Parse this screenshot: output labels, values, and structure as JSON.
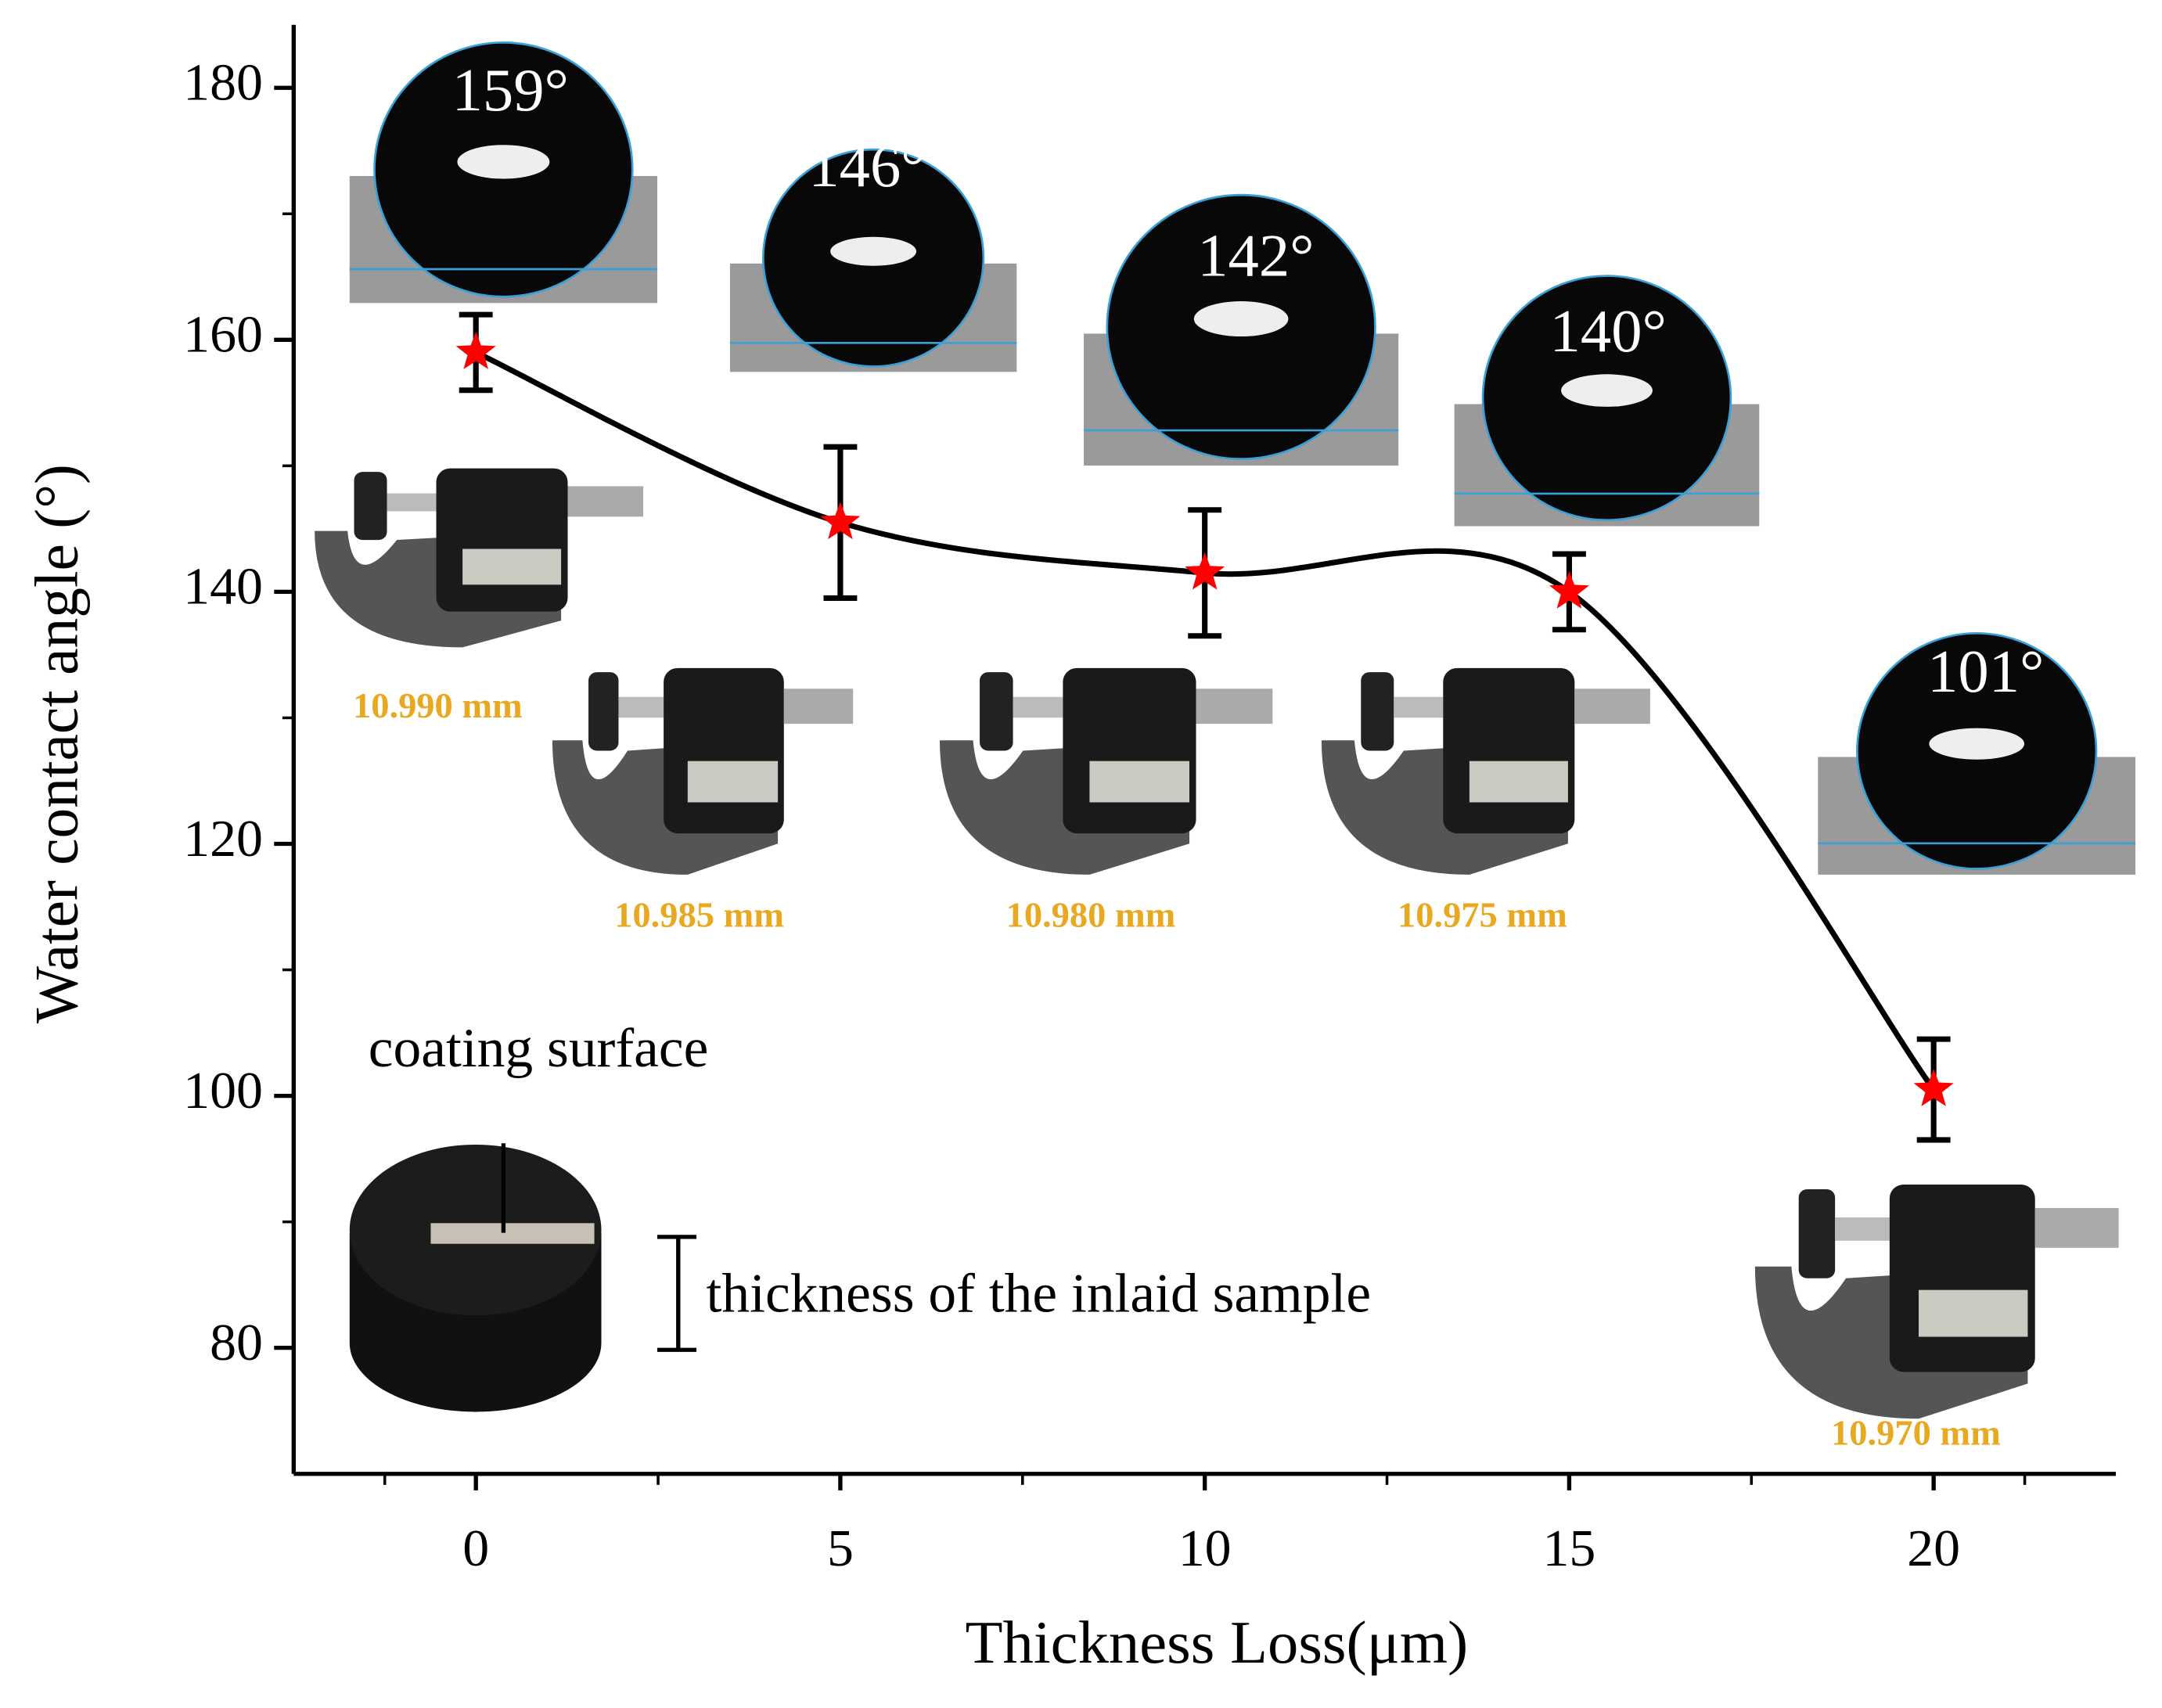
{
  "chart_data": {
    "type": "line",
    "x_label": "Thickness Loss(μm)",
    "y_label": "Water contact angle (°)",
    "x": [
      0,
      5,
      10,
      15,
      20
    ],
    "values": [
      159,
      145.5,
      141.5,
      140,
      100.5
    ],
    "errors": [
      3,
      6,
      5,
      3,
      4
    ],
    "color": "#ff0000",
    "line_color": "#000000",
    "xlim": [
      -2.5,
      22.5
    ],
    "xticks": [
      0,
      5,
      10,
      15,
      20
    ],
    "ylim": [
      70,
      185
    ],
    "yticks": [
      80,
      100,
      120,
      140,
      160,
      180
    ],
    "angle_labels": [
      "159°",
      "146°",
      "142°",
      "140°",
      "101°"
    ],
    "micrometer_readings": [
      "10.990 mm",
      "10.985 mm",
      "10.980 mm",
      "10.975 mm",
      "10.970 mm"
    ],
    "reading_color": "#e8a820",
    "sample_annotations": [
      "coating surface",
      "thickness of the inlaid sample"
    ]
  }
}
